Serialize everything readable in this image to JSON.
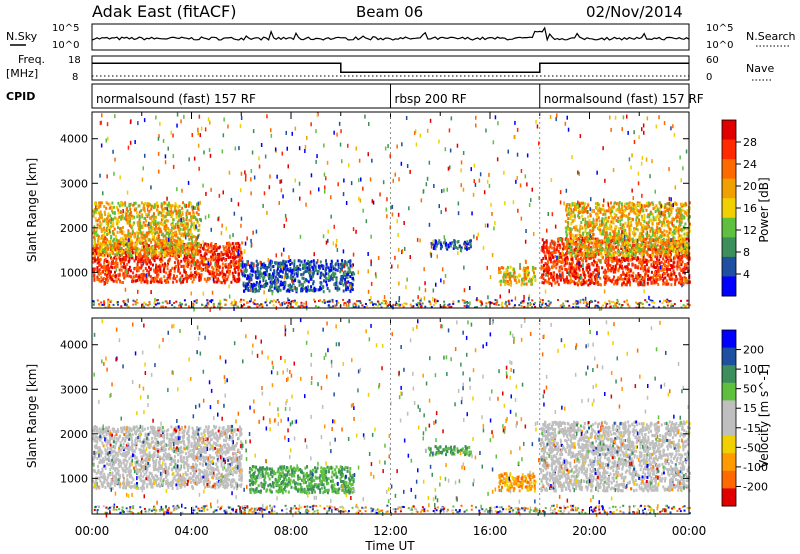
{
  "header": {
    "station": "Adak East (fitACF)",
    "beam": "Beam 06",
    "date": "02/Nov/2014"
  },
  "colors": {
    "power": [
      "#0000ff",
      "#1e4fa0",
      "#3c8f5a",
      "#5fc040",
      "#f0d000",
      "#f0a000",
      "#ff6a00",
      "#ff2a00",
      "#e00000"
    ],
    "velocity": [
      "#e00000",
      "#ff6a00",
      "#ff9a00",
      "#f0d000",
      "#bfbfbf",
      "#bfbfbf",
      "#5fc040",
      "#3c8f5a",
      "#1e4fa0",
      "#0000ff"
    ]
  },
  "chart_data": [
    {
      "type": "line",
      "panel": "noise",
      "left_label": "N.Sky",
      "right_label": "N.Search",
      "left_ticks": [
        "10^5",
        "10^0"
      ],
      "right_ticks": [
        "10^5",
        "10^0"
      ],
      "xlim": [
        0,
        24
      ]
    },
    {
      "type": "line",
      "panel": "frequency",
      "left_label_1": "Freq.",
      "left_label_2": "[MHz]",
      "left_ticks": [
        "18",
        "8"
      ],
      "right_label": "Nave",
      "right_ticks": [
        "60",
        "0"
      ],
      "xlim": [
        0,
        24
      ],
      "freq_steps": [
        {
          "start": 0,
          "end": 10,
          "level": 0.7
        },
        {
          "start": 10,
          "end": 18,
          "level": 0.32
        },
        {
          "start": 18,
          "end": 24,
          "level": 0.7
        }
      ]
    },
    {
      "type": "table",
      "panel": "cpid",
      "label": "CPID",
      "segments": [
        {
          "start": 0,
          "end": 12,
          "name": "normalsound (fast) 157 RF"
        },
        {
          "start": 12,
          "end": 18,
          "name": "rbsp 200 RF"
        },
        {
          "start": 18,
          "end": 24,
          "name": "normalsound (fast) 157 RF"
        }
      ]
    },
    {
      "type": "heatmap",
      "panel": "power",
      "ylabel": "Slant Range [km]",
      "yticks": [
        1000,
        2000,
        3000,
        4000
      ],
      "ylim": [
        200,
        4600
      ],
      "xlim": [
        0,
        24
      ],
      "colorbar_label": "Power [dB]",
      "colorbar_ticks": [
        "28",
        "24",
        "20",
        "16",
        "12",
        "8",
        "4"
      ],
      "regions": [
        {
          "t0": 0.0,
          "t1": 6.0,
          "r0": 800,
          "r1": 1700,
          "value": "high"
        },
        {
          "t0": 0.0,
          "t1": 4.3,
          "r0": 1400,
          "r1": 2600,
          "value": "mid"
        },
        {
          "t0": 6.0,
          "t1": 10.5,
          "r0": 600,
          "r1": 1300,
          "value": "low"
        },
        {
          "t0": 13.5,
          "t1": 15.2,
          "r0": 1550,
          "r1": 1750,
          "value": "low"
        },
        {
          "t0": 16.3,
          "t1": 17.8,
          "r0": 750,
          "r1": 1150,
          "value": "mid"
        },
        {
          "t0": 18.0,
          "t1": 24.0,
          "r0": 750,
          "r1": 1800,
          "value": "high"
        },
        {
          "t0": 19.0,
          "t1": 24.0,
          "r0": 1400,
          "r1": 2600,
          "value": "mid"
        }
      ]
    },
    {
      "type": "heatmap",
      "panel": "velocity",
      "ylabel": "Slant Range [km]",
      "yticks": [
        1000,
        2000,
        3000,
        4000
      ],
      "ylim": [
        200,
        4600
      ],
      "xlim": [
        0,
        24
      ],
      "xlabel": "Time UT",
      "xticks": [
        "00:00",
        "04:00",
        "08:00",
        "12:00",
        "16:00",
        "20:00",
        "00:00"
      ],
      "colorbar_label": "Velocity [m s^-1]",
      "colorbar_ticks": [
        "200",
        "100",
        "50",
        "15",
        "-15",
        "-50",
        "-100",
        "-200"
      ],
      "regions": [
        {
          "t0": 0.0,
          "t1": 6.0,
          "r0": 800,
          "r1": 2200,
          "value": "ground"
        },
        {
          "t0": 6.3,
          "t1": 10.5,
          "r0": 700,
          "r1": 1300,
          "value": "positive"
        },
        {
          "t0": 13.5,
          "t1": 15.2,
          "r0": 1550,
          "r1": 1750,
          "value": "positive"
        },
        {
          "t0": 16.3,
          "t1": 17.8,
          "r0": 750,
          "r1": 1150,
          "value": "negative"
        },
        {
          "t0": 18.0,
          "t1": 24.0,
          "r0": 750,
          "r1": 2300,
          "value": "ground"
        }
      ]
    }
  ]
}
